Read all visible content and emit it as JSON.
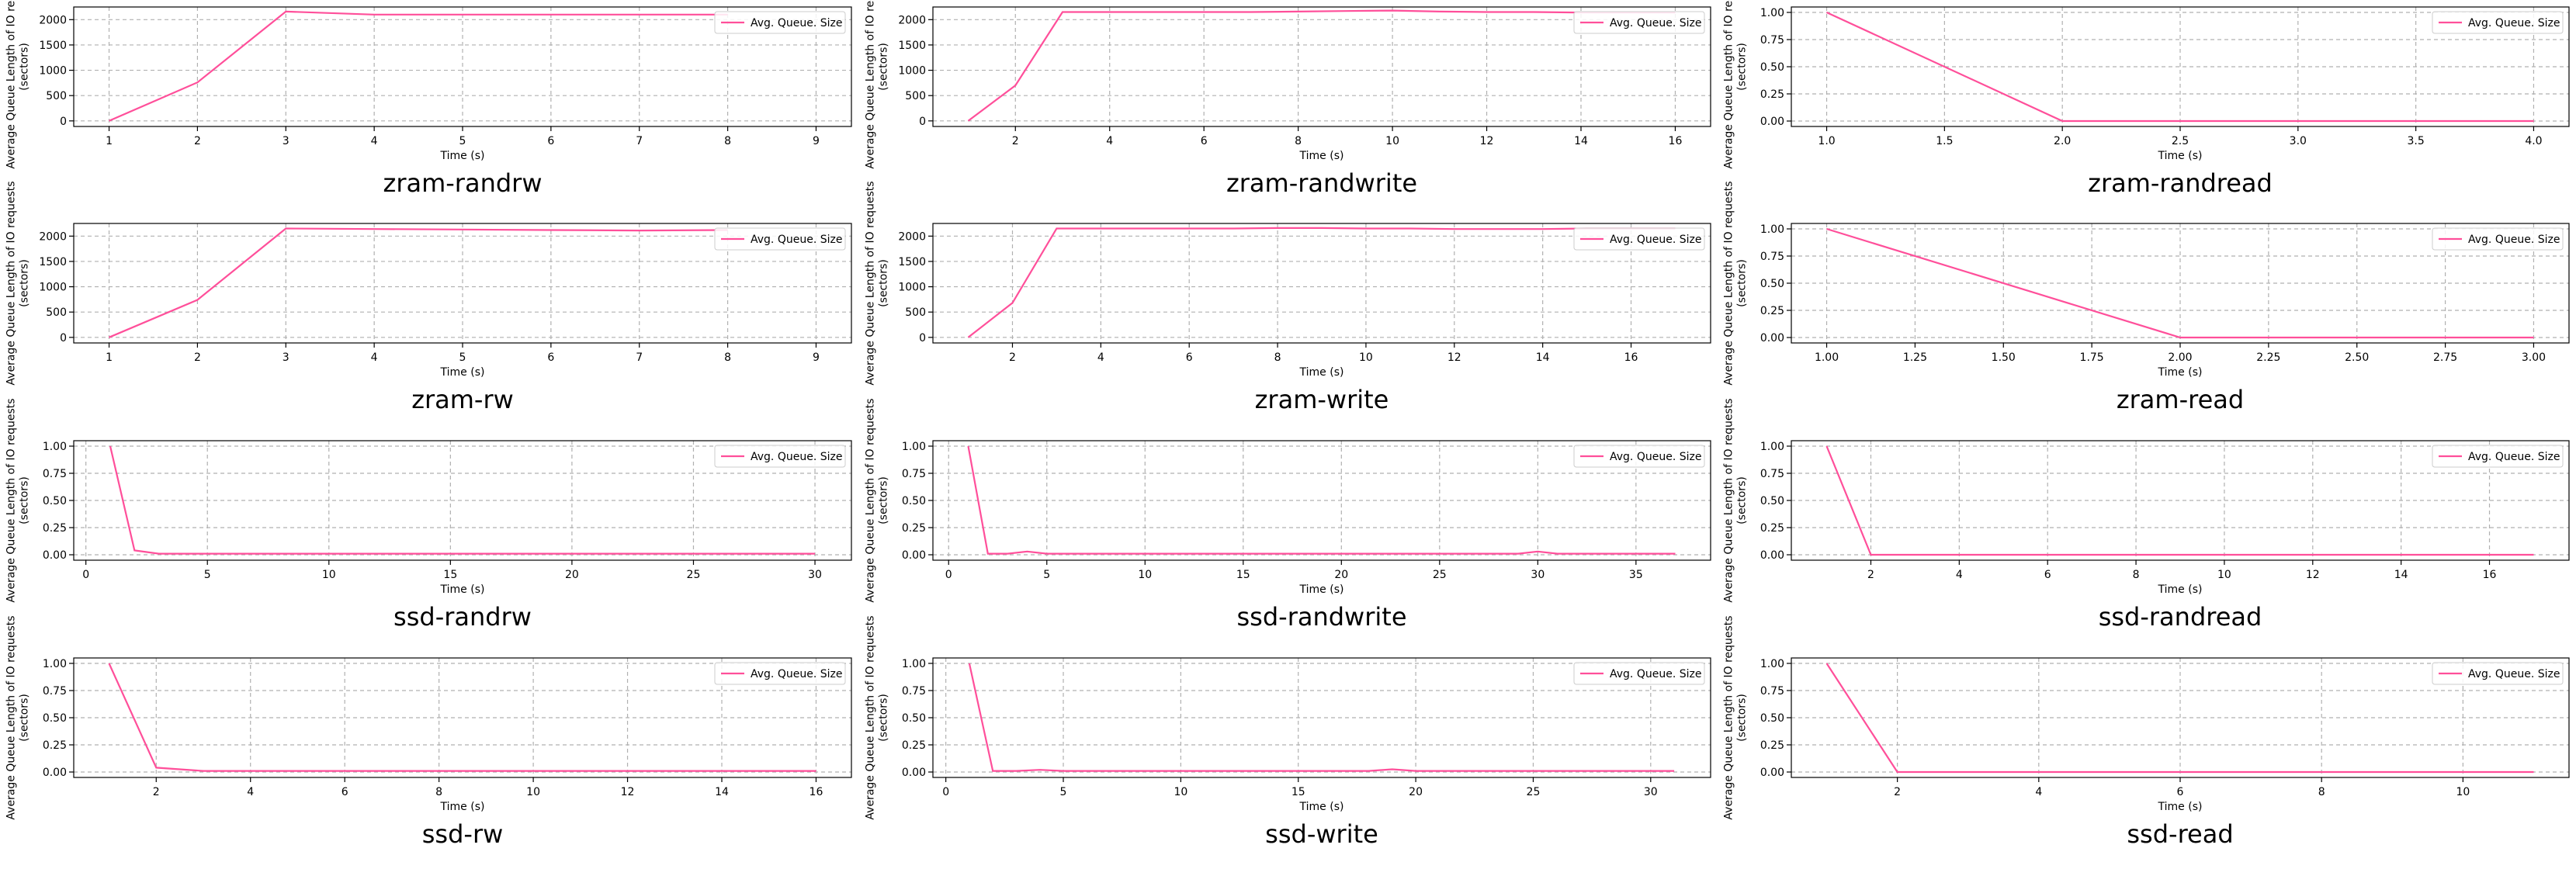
{
  "colors": {
    "line": "#ff4f9a",
    "grid": "#b0b0b0",
    "legend_border": "#cccccc",
    "axis": "#000000"
  },
  "chart_data": [
    {
      "type": "line",
      "title": "zram-randrw",
      "xlabel": "Time (s)",
      "ylabel": "Average Queue Length of IO requests (sectors)",
      "xlim": [
        0.6,
        9.4
      ],
      "ylim": [
        -110,
        2250
      ],
      "xticks": [
        1,
        2,
        3,
        4,
        5,
        6,
        7,
        8,
        9
      ],
      "xtick_labels": [
        "1",
        "2",
        "3",
        "4",
        "5",
        "6",
        "7",
        "8",
        "9"
      ],
      "yticks": [
        0,
        500,
        1000,
        1500,
        2000
      ],
      "ytick_labels": [
        "0",
        "500",
        "1000",
        "1500",
        "2000"
      ],
      "legend": "top-right",
      "grid": true,
      "series": [
        {
          "name": "Avg. Queue. Size",
          "x": [
            1,
            2,
            3,
            4,
            5,
            6,
            7,
            8
          ],
          "y": [
            0,
            760,
            2160,
            2100,
            2100,
            2100,
            2100,
            2100
          ]
        }
      ]
    },
    {
      "type": "line",
      "title": "zram-randwrite",
      "xlabel": "Time (s)",
      "ylabel": "Average Queue Length of IO requests (sectors)",
      "xlim": [
        0.25,
        16.75
      ],
      "ylim": [
        -110,
        2250
      ],
      "xticks": [
        2,
        4,
        6,
        8,
        10,
        12,
        14,
        16
      ],
      "xtick_labels": [
        "2",
        "4",
        "6",
        "8",
        "10",
        "12",
        "14",
        "16"
      ],
      "yticks": [
        0,
        500,
        1000,
        1500,
        2000
      ],
      "ytick_labels": [
        "0",
        "500",
        "1000",
        "1500",
        "2000"
      ],
      "legend": "top-right",
      "grid": true,
      "series": [
        {
          "name": "Avg. Queue. Size",
          "x": [
            1,
            2,
            3,
            4,
            5,
            6,
            7,
            8,
            9,
            10,
            11,
            12,
            13,
            14,
            15,
            16
          ],
          "y": [
            0,
            700,
            2150,
            2150,
            2150,
            2150,
            2150,
            2160,
            2170,
            2180,
            2160,
            2150,
            2150,
            2140,
            2140,
            2140
          ]
        }
      ]
    },
    {
      "type": "line",
      "title": "zram-randread",
      "xlabel": "Time (s)",
      "ylabel": "Average Queue Length of IO requests (sectors)",
      "xlim": [
        0.85,
        4.15
      ],
      "ylim": [
        -0.05,
        1.05
      ],
      "xticks": [
        1.0,
        1.5,
        2.0,
        2.5,
        3.0,
        3.5,
        4.0
      ],
      "xtick_labels": [
        "1.0",
        "1.5",
        "2.0",
        "2.5",
        "3.0",
        "3.5",
        "4.0"
      ],
      "yticks": [
        0,
        0.25,
        0.5,
        0.75,
        1.0
      ],
      "ytick_labels": [
        "0.00",
        "0.25",
        "0.50",
        "0.75",
        "1.00"
      ],
      "legend": "top-right",
      "grid": true,
      "series": [
        {
          "name": "Avg. Queue. Size",
          "x": [
            1,
            2,
            3,
            4
          ],
          "y": [
            1,
            0,
            0,
            0
          ]
        }
      ]
    },
    {
      "type": "line",
      "title": "zram-rw",
      "xlabel": "Time (s)",
      "ylabel": "Average Queue Length of IO requests (sectors)",
      "xlim": [
        0.6,
        9.4
      ],
      "ylim": [
        -110,
        2250
      ],
      "xticks": [
        1,
        2,
        3,
        4,
        5,
        6,
        7,
        8,
        9
      ],
      "xtick_labels": [
        "1",
        "2",
        "3",
        "4",
        "5",
        "6",
        "7",
        "8",
        "9"
      ],
      "yticks": [
        0,
        500,
        1000,
        1500,
        2000
      ],
      "ytick_labels": [
        "0",
        "500",
        "1000",
        "1500",
        "2000"
      ],
      "legend": "top-right",
      "grid": true,
      "series": [
        {
          "name": "Avg. Queue. Size",
          "x": [
            1,
            2,
            3,
            4,
            5,
            6,
            7,
            8
          ],
          "y": [
            0,
            740,
            2150,
            2140,
            2130,
            2120,
            2110,
            2120
          ]
        }
      ]
    },
    {
      "type": "line",
      "title": "zram-write",
      "xlabel": "Time (s)",
      "ylabel": "Average Queue Length of IO requests (sectors)",
      "xlim": [
        0.2,
        17.8
      ],
      "ylim": [
        -110,
        2250
      ],
      "xticks": [
        2,
        4,
        6,
        8,
        10,
        12,
        14,
        16
      ],
      "xtick_labels": [
        "2",
        "4",
        "6",
        "8",
        "10",
        "12",
        "14",
        "16"
      ],
      "yticks": [
        0,
        500,
        1000,
        1500,
        2000
      ],
      "ytick_labels": [
        "0",
        "500",
        "1000",
        "1500",
        "2000"
      ],
      "legend": "top-right",
      "grid": true,
      "series": [
        {
          "name": "Avg. Queue. Size",
          "x": [
            1,
            2,
            3,
            4,
            5,
            6,
            7,
            8,
            9,
            10,
            11,
            12,
            13,
            14,
            15,
            16,
            17
          ],
          "y": [
            0,
            680,
            2150,
            2150,
            2150,
            2150,
            2150,
            2160,
            2160,
            2150,
            2150,
            2140,
            2140,
            2140,
            2150,
            2150,
            2150
          ]
        }
      ]
    },
    {
      "type": "line",
      "title": "zram-read",
      "xlabel": "Time (s)",
      "ylabel": "Average Queue Length of IO requests (sectors)",
      "xlim": [
        0.9,
        3.1
      ],
      "ylim": [
        -0.05,
        1.05
      ],
      "xticks": [
        1.0,
        1.25,
        1.5,
        1.75,
        2.0,
        2.25,
        2.5,
        2.75,
        3.0
      ],
      "xtick_labels": [
        "1.00",
        "1.25",
        "1.50",
        "1.75",
        "2.00",
        "2.25",
        "2.50",
        "2.75",
        "3.00"
      ],
      "yticks": [
        0,
        0.25,
        0.5,
        0.75,
        1.0
      ],
      "ytick_labels": [
        "0.00",
        "0.25",
        "0.50",
        "0.75",
        "1.00"
      ],
      "legend": "top-right",
      "grid": true,
      "series": [
        {
          "name": "Avg. Queue. Size",
          "x": [
            1,
            2,
            3
          ],
          "y": [
            1,
            0,
            0
          ]
        }
      ]
    },
    {
      "type": "line",
      "title": "ssd-randrw",
      "xlabel": "Time (s)",
      "ylabel": "Average Queue Length of IO requests (sectors)",
      "xlim": [
        -0.5,
        31.5
      ],
      "ylim": [
        -0.05,
        1.05
      ],
      "xticks": [
        0,
        5,
        10,
        15,
        20,
        25,
        30
      ],
      "xtick_labels": [
        "0",
        "5",
        "10",
        "15",
        "20",
        "25",
        "30"
      ],
      "yticks": [
        0,
        0.25,
        0.5,
        0.75,
        1.0
      ],
      "ytick_labels": [
        "0.00",
        "0.25",
        "0.50",
        "0.75",
        "1.00"
      ],
      "legend": "top-right",
      "grid": true,
      "series": [
        {
          "name": "Avg. Queue. Size",
          "x": [
            1,
            2,
            3,
            4,
            5,
            6,
            7,
            8,
            9,
            10,
            11,
            12,
            13,
            14,
            15,
            16,
            17,
            18,
            19,
            20,
            21,
            22,
            23,
            24,
            25,
            26,
            27,
            28,
            29,
            30
          ],
          "y": [
            1,
            0.04,
            0.01,
            0.01,
            0.01,
            0.01,
            0.01,
            0.01,
            0.01,
            0.01,
            0.01,
            0.01,
            0.01,
            0.01,
            0.01,
            0.01,
            0.01,
            0.01,
            0.01,
            0.01,
            0.01,
            0.01,
            0.01,
            0.01,
            0.01,
            0.01,
            0.01,
            0.01,
            0.01,
            0.01
          ]
        }
      ]
    },
    {
      "type": "line",
      "title": "ssd-randwrite",
      "xlabel": "Time (s)",
      "ylabel": "Average Queue Length of IO requests (sectors)",
      "xlim": [
        -0.8,
        38.8
      ],
      "ylim": [
        -0.05,
        1.05
      ],
      "xticks": [
        0,
        5,
        10,
        15,
        20,
        25,
        30,
        35
      ],
      "xtick_labels": [
        "0",
        "5",
        "10",
        "15",
        "20",
        "25",
        "30",
        "35"
      ],
      "yticks": [
        0,
        0.25,
        0.5,
        0.75,
        1.0
      ],
      "ytick_labels": [
        "0.00",
        "0.25",
        "0.50",
        "0.75",
        "1.00"
      ],
      "legend": "top-right",
      "grid": true,
      "series": [
        {
          "name": "Avg. Queue. Size",
          "x": [
            1,
            2,
            3,
            4,
            5,
            6,
            10,
            15,
            20,
            25,
            29,
            30,
            31,
            33,
            35,
            37
          ],
          "y": [
            1,
            0.01,
            0.01,
            0.03,
            0.01,
            0.01,
            0.01,
            0.01,
            0.01,
            0.01,
            0.01,
            0.03,
            0.01,
            0.01,
            0.01,
            0.01
          ]
        }
      ]
    },
    {
      "type": "line",
      "title": "ssd-randread",
      "xlabel": "Time (s)",
      "ylabel": "Average Queue Length of IO requests (sectors)",
      "xlim": [
        0.2,
        17.8
      ],
      "ylim": [
        -0.05,
        1.05
      ],
      "xticks": [
        2,
        4,
        6,
        8,
        10,
        12,
        14,
        16
      ],
      "xtick_labels": [
        "2",
        "4",
        "6",
        "8",
        "10",
        "12",
        "14",
        "16"
      ],
      "yticks": [
        0,
        0.25,
        0.5,
        0.75,
        1.0
      ],
      "ytick_labels": [
        "0.00",
        "0.25",
        "0.50",
        "0.75",
        "1.00"
      ],
      "legend": "top-right",
      "grid": true,
      "series": [
        {
          "name": "Avg. Queue. Size",
          "x": [
            1,
            2,
            3,
            4,
            5,
            6,
            7,
            8,
            9,
            10,
            11,
            12,
            13,
            14,
            15,
            16,
            17
          ],
          "y": [
            1,
            0,
            0,
            0,
            0,
            0,
            0,
            0,
            0,
            0,
            0,
            0,
            0,
            0,
            0,
            0,
            0
          ]
        }
      ]
    },
    {
      "type": "line",
      "title": "ssd-rw",
      "xlabel": "Time (s)",
      "ylabel": "Average Queue Length of IO requests (sectors)",
      "xlim": [
        0.25,
        16.75
      ],
      "ylim": [
        -0.05,
        1.05
      ],
      "xticks": [
        2,
        4,
        6,
        8,
        10,
        12,
        14,
        16
      ],
      "xtick_labels": [
        "2",
        "4",
        "6",
        "8",
        "10",
        "12",
        "14",
        "16"
      ],
      "yticks": [
        0,
        0.25,
        0.5,
        0.75,
        1.0
      ],
      "ytick_labels": [
        "0.00",
        "0.25",
        "0.50",
        "0.75",
        "1.00"
      ],
      "legend": "top-right",
      "grid": true,
      "series": [
        {
          "name": "Avg. Queue. Size",
          "x": [
            1,
            2,
            3,
            4,
            5,
            6,
            7,
            8,
            9,
            10,
            11,
            12,
            13,
            14,
            15,
            16
          ],
          "y": [
            1,
            0.04,
            0.01,
            0.01,
            0.01,
            0.01,
            0.01,
            0.01,
            0.01,
            0.01,
            0.01,
            0.01,
            0.01,
            0.01,
            0.01,
            0.01
          ]
        }
      ]
    },
    {
      "type": "line",
      "title": "ssd-write",
      "xlabel": "Time (s)",
      "ylabel": "Average Queue Length of IO requests (sectors)",
      "xlim": [
        -0.55,
        32.55
      ],
      "ylim": [
        -0.05,
        1.05
      ],
      "xticks": [
        0,
        5,
        10,
        15,
        20,
        25,
        30
      ],
      "xtick_labels": [
        "0",
        "5",
        "10",
        "15",
        "20",
        "25",
        "30"
      ],
      "yticks": [
        0,
        0.25,
        0.5,
        0.75,
        1.0
      ],
      "ytick_labels": [
        "0.00",
        "0.25",
        "0.50",
        "0.75",
        "1.00"
      ],
      "legend": "top-right",
      "grid": true,
      "series": [
        {
          "name": "Avg. Queue. Size",
          "x": [
            1,
            2,
            3,
            4,
            5,
            6,
            10,
            15,
            18,
            19,
            20,
            21,
            25,
            30,
            31
          ],
          "y": [
            1,
            0.01,
            0.01,
            0.02,
            0.01,
            0.01,
            0.01,
            0.01,
            0.01,
            0.025,
            0.01,
            0.01,
            0.01,
            0.01,
            0.01
          ]
        }
      ]
    },
    {
      "type": "line",
      "title": "ssd-read",
      "xlabel": "Time (s)",
      "ylabel": "Average Queue Length of IO requests (sectors)",
      "xlim": [
        0.5,
        11.5
      ],
      "ylim": [
        -0.05,
        1.05
      ],
      "xticks": [
        2,
        4,
        6,
        8,
        10
      ],
      "xtick_labels": [
        "2",
        "4",
        "6",
        "8",
        "10"
      ],
      "yticks": [
        0,
        0.25,
        0.5,
        0.75,
        1.0
      ],
      "ytick_labels": [
        "0.00",
        "0.25",
        "0.50",
        "0.75",
        "1.00"
      ],
      "legend": "top-right",
      "grid": true,
      "series": [
        {
          "name": "Avg. Queue. Size",
          "x": [
            1,
            2,
            3,
            4,
            5,
            6,
            7,
            8,
            9,
            10,
            11
          ],
          "y": [
            1,
            0,
            0,
            0,
            0,
            0,
            0,
            0,
            0,
            0,
            0
          ]
        }
      ]
    }
  ]
}
